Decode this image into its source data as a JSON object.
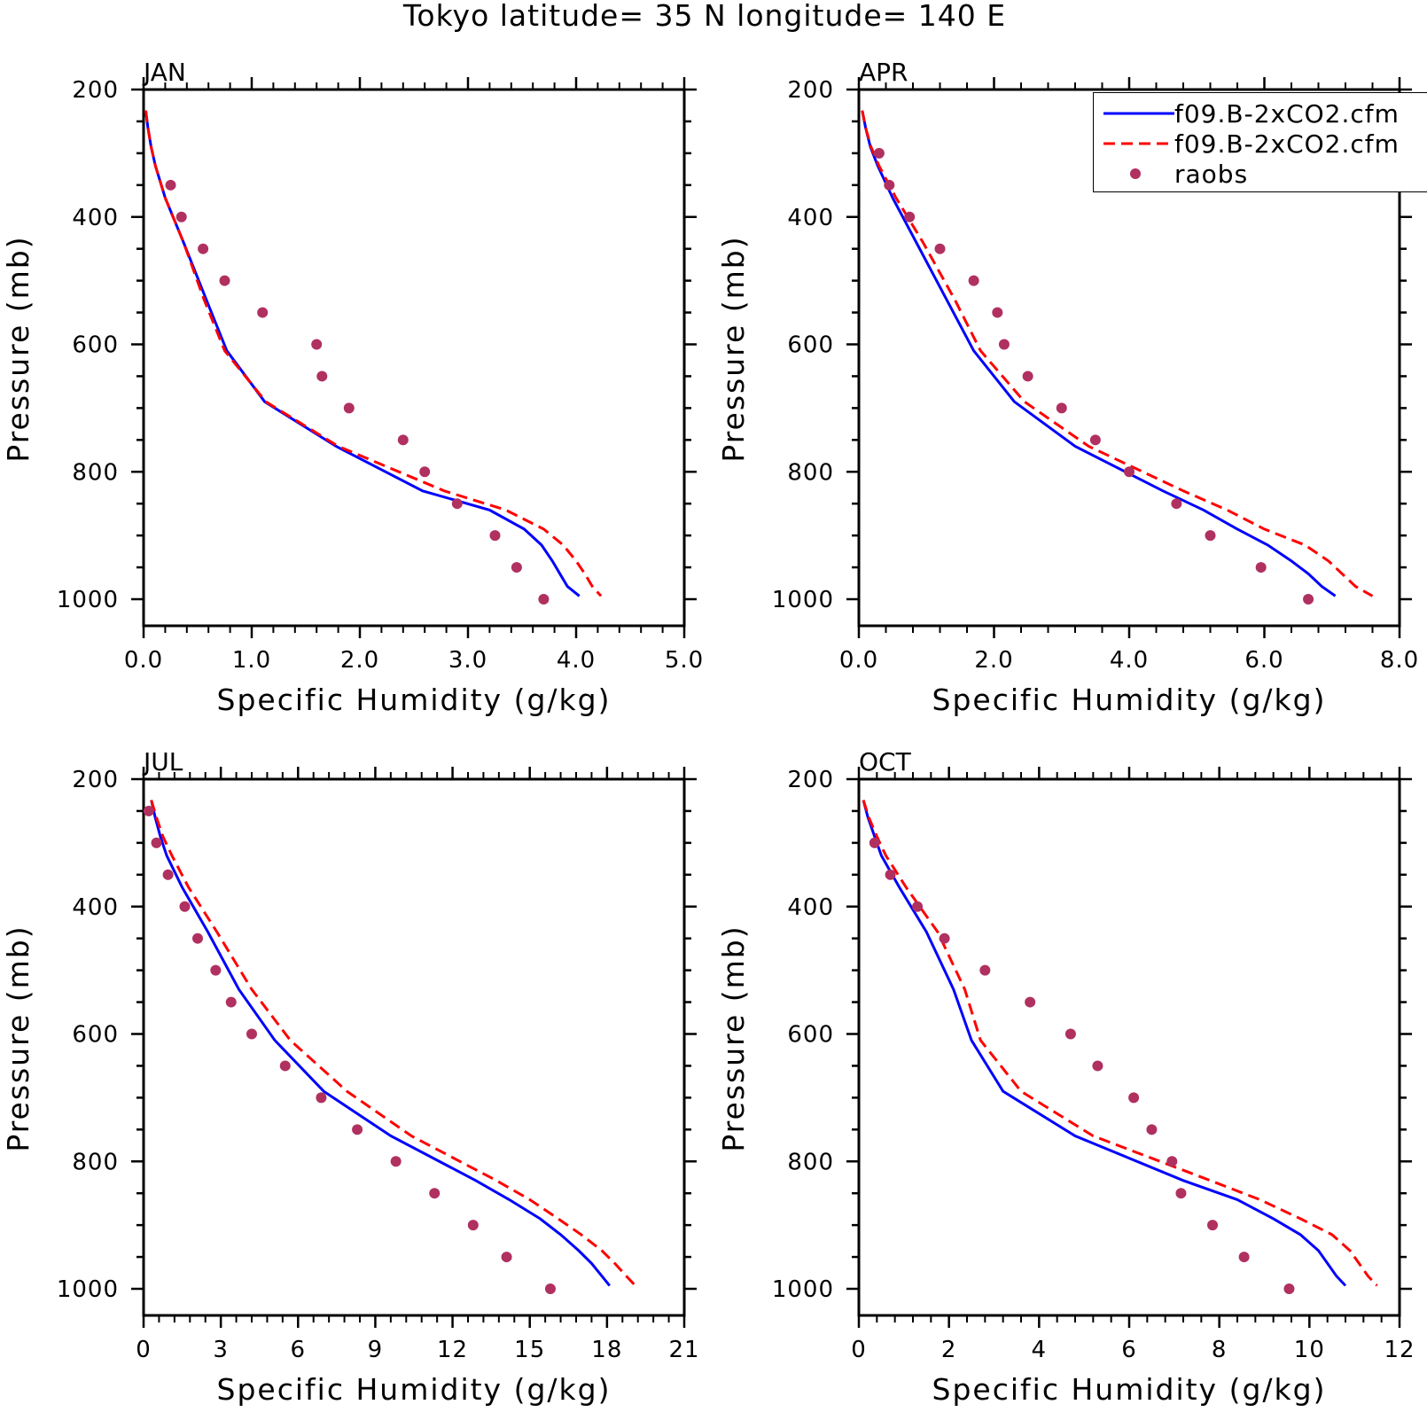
{
  "title": "Tokyo  latitude= 35 N longitude= 140 E",
  "legend": {
    "entries": [
      {
        "label": "f09.B-2xCO2.cfm",
        "style": "solid",
        "color": "#0000ff"
      },
      {
        "label": "f09.B-2xCO2.cfm",
        "style": "dashed",
        "color": "#ff0000"
      },
      {
        "label": "raobs",
        "style": "dot",
        "color": "#b03060"
      }
    ]
  },
  "colors": {
    "model_solid": "#0000ff",
    "model_dashed": "#ff0000",
    "raobs": "#b03060",
    "axes": "#000000"
  },
  "chart_data": [
    {
      "type": "line",
      "panel": "JAN",
      "xlabel": "Specific Humidity (g/kg)",
      "ylabel": "Pressure (mb)",
      "xlim": [
        0,
        5
      ],
      "ylim": [
        1000,
        200
      ],
      "xticks": [
        0,
        1,
        2,
        3,
        4,
        5
      ],
      "xtick_labels": [
        "0.0",
        "1.0",
        "2.0",
        "3.0",
        "4.0",
        "5.0"
      ],
      "yticks": [
        200,
        400,
        600,
        800,
        1000
      ],
      "ytick_labels": [
        "200",
        "400",
        "600",
        "800",
        "1000"
      ],
      "series": [
        {
          "style": "solid",
          "p": [
            233,
            260,
            290,
            320,
            370,
            440,
            530,
            610,
            690,
            760,
            830,
            860,
            890,
            915,
            940,
            960,
            980,
            995
          ],
          "q": [
            0.02,
            0.04,
            0.07,
            0.11,
            0.2,
            0.37,
            0.58,
            0.77,
            1.12,
            1.78,
            2.58,
            3.2,
            3.52,
            3.68,
            3.78,
            3.85,
            3.92,
            4.03
          ]
        },
        {
          "style": "dashed",
          "p": [
            233,
            260,
            290,
            320,
            370,
            440,
            530,
            610,
            690,
            760,
            830,
            860,
            890,
            915,
            940,
            960,
            980,
            995
          ],
          "q": [
            0.02,
            0.04,
            0.07,
            0.11,
            0.2,
            0.37,
            0.56,
            0.75,
            1.13,
            1.8,
            2.78,
            3.35,
            3.7,
            3.88,
            4.0,
            4.08,
            4.15,
            4.23
          ]
        },
        {
          "style": "dot",
          "p": [
            350,
            400,
            450,
            500,
            550,
            600,
            650,
            700,
            750,
            800,
            850,
            900,
            950,
            1000
          ],
          "q": [
            0.25,
            0.35,
            0.55,
            0.75,
            1.1,
            1.6,
            1.65,
            1.9,
            2.4,
            2.6,
            2.9,
            3.25,
            3.45,
            3.7
          ]
        }
      ]
    },
    {
      "type": "line",
      "panel": "APR",
      "xlabel": "Specific Humidity (g/kg)",
      "ylabel": "",
      "xlim": [
        0,
        8
      ],
      "ylim": [
        1000,
        200
      ],
      "xticks": [
        0,
        2,
        4,
        6,
        8
      ],
      "xtick_labels": [
        "0.0",
        "2.0",
        "4.0",
        "6.0",
        "8.0"
      ],
      "yticks": [
        200,
        400,
        600,
        800,
        1000
      ],
      "ytick_labels": [
        "200",
        "400",
        "600",
        "800",
        "1000"
      ],
      "series": [
        {
          "style": "solid",
          "p": [
            233,
            260,
            290,
            320,
            370,
            440,
            530,
            610,
            690,
            760,
            830,
            860,
            890,
            915,
            940,
            960,
            980,
            995
          ],
          "q": [
            0.05,
            0.1,
            0.17,
            0.28,
            0.5,
            0.85,
            1.3,
            1.7,
            2.3,
            3.2,
            4.5,
            5.1,
            5.6,
            6.05,
            6.4,
            6.65,
            6.85,
            7.05
          ]
        },
        {
          "style": "dashed",
          "p": [
            233,
            260,
            290,
            320,
            370,
            440,
            530,
            610,
            690,
            760,
            830,
            860,
            890,
            915,
            940,
            960,
            980,
            995
          ],
          "q": [
            0.05,
            0.1,
            0.18,
            0.3,
            0.55,
            0.95,
            1.42,
            1.8,
            2.45,
            3.4,
            4.8,
            5.45,
            6.0,
            6.6,
            6.95,
            7.15,
            7.35,
            7.6
          ]
        },
        {
          "style": "dot",
          "p": [
            300,
            350,
            400,
            450,
            500,
            550,
            600,
            650,
            700,
            750,
            800,
            850,
            900,
            950,
            1000
          ],
          "q": [
            0.3,
            0.45,
            0.75,
            1.2,
            1.7,
            2.05,
            2.15,
            2.5,
            3.0,
            3.5,
            4.0,
            4.7,
            5.2,
            5.95,
            6.65
          ]
        }
      ]
    },
    {
      "type": "line",
      "panel": "JUL",
      "xlabel": "Specific Humidity (g/kg)",
      "ylabel": "Pressure (mb)",
      "xlim": [
        0,
        21
      ],
      "ylim": [
        1000,
        200
      ],
      "xticks": [
        0,
        3,
        6,
        9,
        12,
        15,
        18,
        21
      ],
      "xtick_labels": [
        "0",
        "3",
        "6",
        "9",
        "12",
        "15",
        "18",
        "21"
      ],
      "yticks": [
        200,
        400,
        600,
        800,
        1000
      ],
      "ytick_labels": [
        "200",
        "400",
        "600",
        "800",
        "1000"
      ],
      "series": [
        {
          "style": "solid",
          "p": [
            233,
            260,
            290,
            320,
            370,
            440,
            530,
            610,
            690,
            760,
            830,
            860,
            890,
            915,
            940,
            960,
            980,
            995
          ],
          "q": [
            0.3,
            0.45,
            0.65,
            0.9,
            1.5,
            2.5,
            3.7,
            5.1,
            7.0,
            9.6,
            12.9,
            14.2,
            15.4,
            16.2,
            16.9,
            17.4,
            17.8,
            18.1
          ]
        },
        {
          "style": "dashed",
          "p": [
            233,
            260,
            290,
            320,
            370,
            440,
            530,
            610,
            690,
            760,
            830,
            860,
            890,
            915,
            940,
            960,
            980,
            995
          ],
          "q": [
            0.3,
            0.5,
            0.75,
            1.1,
            1.75,
            2.85,
            4.2,
            5.7,
            7.9,
            10.4,
            13.7,
            15.0,
            16.1,
            17.0,
            17.8,
            18.3,
            18.75,
            19.1
          ]
        },
        {
          "style": "dot",
          "p": [
            250,
            300,
            350,
            400,
            450,
            500,
            550,
            600,
            650,
            700,
            750,
            800,
            850,
            900,
            950,
            1000
          ],
          "q": [
            0.2,
            0.5,
            0.95,
            1.6,
            2.1,
            2.8,
            3.4,
            4.2,
            5.5,
            6.9,
            8.3,
            9.8,
            11.3,
            12.8,
            14.1,
            15.8
          ]
        }
      ]
    },
    {
      "type": "line",
      "panel": "OCT",
      "xlabel": "Specific Humidity (g/kg)",
      "ylabel": "",
      "xlim": [
        0,
        12
      ],
      "ylim": [
        1000,
        200
      ],
      "xticks": [
        0,
        2,
        4,
        6,
        8,
        10,
        12
      ],
      "xtick_labels": [
        "0",
        "2",
        "4",
        "6",
        "8",
        "10",
        "12"
      ],
      "yticks": [
        200,
        400,
        600,
        800,
        1000
      ],
      "ytick_labels": [
        "200",
        "400",
        "600",
        "800",
        "1000"
      ],
      "series": [
        {
          "style": "solid",
          "p": [
            233,
            260,
            290,
            320,
            370,
            440,
            530,
            610,
            690,
            760,
            830,
            860,
            890,
            915,
            940,
            960,
            980,
            995
          ],
          "q": [
            0.1,
            0.2,
            0.35,
            0.5,
            0.9,
            1.5,
            2.1,
            2.5,
            3.2,
            4.8,
            7.2,
            8.4,
            9.2,
            9.8,
            10.2,
            10.4,
            10.6,
            10.8
          ]
        },
        {
          "style": "dashed",
          "p": [
            233,
            260,
            290,
            320,
            370,
            440,
            530,
            610,
            690,
            760,
            830,
            860,
            890,
            915,
            940,
            960,
            980,
            995
          ],
          "q": [
            0.1,
            0.22,
            0.4,
            0.6,
            1.05,
            1.75,
            2.35,
            2.7,
            3.6,
            5.2,
            7.8,
            8.9,
            9.8,
            10.5,
            10.9,
            11.1,
            11.3,
            11.5
          ]
        },
        {
          "style": "dot",
          "p": [
            300,
            350,
            400,
            450,
            500,
            550,
            600,
            650,
            700,
            750,
            800,
            850,
            900,
            950,
            1000
          ],
          "q": [
            0.35,
            0.7,
            1.3,
            1.9,
            2.8,
            3.8,
            4.7,
            5.3,
            6.1,
            6.5,
            6.95,
            7.15,
            7.85,
            8.55,
            9.55
          ]
        }
      ]
    }
  ]
}
